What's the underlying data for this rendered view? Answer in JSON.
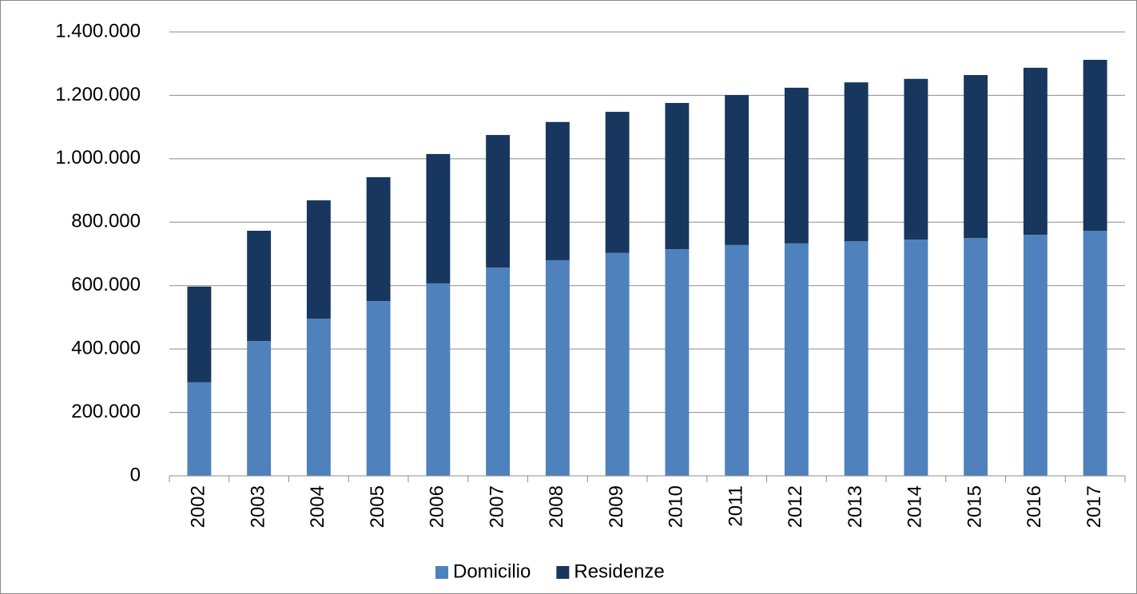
{
  "chart_data": {
    "type": "stacked_bar",
    "categories": [
      "2002",
      "2003",
      "2004",
      "2005",
      "2006",
      "2007",
      "2008",
      "2009",
      "2010",
      "2011",
      "2012",
      "2013",
      "2014",
      "2015",
      "2016",
      "2017"
    ],
    "series": [
      {
        "name": "Domicilio",
        "color": "#4f81bd",
        "values": [
          295000,
          425000,
          496000,
          551000,
          607000,
          657000,
          680000,
          703000,
          715000,
          728000,
          733000,
          740000,
          745000,
          750000,
          760000,
          773000
        ]
      },
      {
        "name": "Residenze",
        "color": "#17375e",
        "values": [
          302000,
          348000,
          373000,
          391000,
          408000,
          418000,
          436000,
          445000,
          461000,
          473000,
          491000,
          501000,
          507000,
          514000,
          527000,
          539000
        ]
      }
    ],
    "ylim": [
      0,
      1400000
    ],
    "yticks": [
      0,
      {
        "value": 200000,
        "label": "200.000"
      },
      {
        "value": 400000,
        "label": "400.000"
      },
      {
        "value": 600000,
        "label": "600.000"
      },
      {
        "value": 800000,
        "label": "800.000"
      },
      {
        "value": 1000000,
        "label": "1.000.000"
      },
      {
        "value": 1200000,
        "label": "1.200.000"
      },
      {
        "value": 1400000,
        "label": "1.400.000"
      }
    ],
    "grid": true,
    "legend": "bottom"
  }
}
